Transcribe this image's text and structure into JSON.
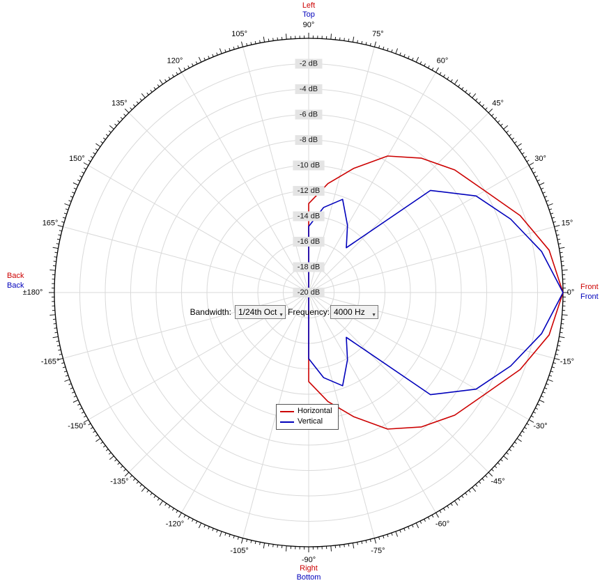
{
  "controls": {
    "bandwidth_label": "Bandwidth:",
    "bandwidth_value": "1/24th Oct",
    "frequency_label": "Frequency:",
    "frequency_value": "4000 Hz"
  },
  "legend": {
    "entries": [
      {
        "label": "Horizontal",
        "color": "#cc0000"
      },
      {
        "label": "Vertical",
        "color": "#0000bb"
      }
    ]
  },
  "direction_labels": {
    "top_primary": {
      "text": "Left",
      "color": "#cc0000"
    },
    "top_secondary": {
      "text": "Top",
      "color": "#0000bb"
    },
    "right_primary": {
      "text": "Front",
      "color": "#cc0000"
    },
    "right_secondary": {
      "text": "Front",
      "color": "#0000bb"
    },
    "left_primary": {
      "text": "Back",
      "color": "#cc0000"
    },
    "left_secondary": {
      "text": "Back",
      "color": "#0000bb"
    },
    "bottom_primary": {
      "text": "Right",
      "color": "#cc0000"
    },
    "bottom_secondary": {
      "text": "Bottom",
      "color": "#0000bb"
    }
  },
  "chart_data": {
    "type": "polar-line",
    "grid": true,
    "legend_position": "lower-left-of-center",
    "radial_axis": {
      "unit": "dB",
      "max": 0,
      "min": -20,
      "step": 2,
      "ring_labels": [
        {
          "db": -2,
          "label": "-2 dB"
        },
        {
          "db": -4,
          "label": "-4 dB"
        },
        {
          "db": -6,
          "label": "-6 dB"
        },
        {
          "db": -8,
          "label": "-8 dB"
        },
        {
          "db": -10,
          "label": "-10 dB"
        },
        {
          "db": -12,
          "label": "-12 dB"
        },
        {
          "db": -14,
          "label": "-14 dB"
        },
        {
          "db": -16,
          "label": "-16 dB"
        },
        {
          "db": -18,
          "label": "-18 dB"
        },
        {
          "db": -20,
          "label": "-20 dB"
        }
      ]
    },
    "angle_axis": {
      "unit": "degrees",
      "major_step_deg": 15,
      "mid_tick_deg": 5,
      "minor_tick_deg": 1,
      "labels": [
        {
          "angle": 90,
          "label": "90°"
        },
        {
          "angle": 75,
          "label": "75°"
        },
        {
          "angle": 60,
          "label": "60°"
        },
        {
          "angle": 45,
          "label": "45°"
        },
        {
          "angle": 30,
          "label": "30°"
        },
        {
          "angle": 15,
          "label": "15°"
        },
        {
          "angle": 0,
          "label": "0°"
        },
        {
          "angle": -15,
          "label": "-15°"
        },
        {
          "angle": -30,
          "label": "-30°"
        },
        {
          "angle": -45,
          "label": "-45°"
        },
        {
          "angle": -60,
          "label": "-60°"
        },
        {
          "angle": -75,
          "label": "-75°"
        },
        {
          "angle": -90,
          "label": "-90°"
        },
        {
          "angle": -105,
          "label": "-105°"
        },
        {
          "angle": -120,
          "label": "-120°"
        },
        {
          "angle": -135,
          "label": "-135°"
        },
        {
          "angle": -150,
          "label": "-150°"
        },
        {
          "angle": -165,
          "label": "-165°"
        },
        {
          "angle": 180,
          "label": "±180°"
        },
        {
          "angle": 165,
          "label": "165°"
        },
        {
          "angle": 150,
          "label": "150°"
        },
        {
          "angle": 135,
          "label": "135°"
        },
        {
          "angle": 120,
          "label": "120°"
        },
        {
          "angle": 105,
          "label": "105°"
        }
      ]
    },
    "series": [
      {
        "name": "Horizontal",
        "color": "#cc0000",
        "points": [
          [
            -180,
            -20
          ],
          [
            -170,
            -20
          ],
          [
            -160,
            -20
          ],
          [
            -150,
            -20
          ],
          [
            -140,
            -20
          ],
          [
            -130,
            -20
          ],
          [
            -120,
            -20
          ],
          [
            -110,
            -20
          ],
          [
            -100,
            -20
          ],
          [
            -90,
            -13.0
          ],
          [
            -80,
            -11.3
          ],
          [
            -70,
            -9.6
          ],
          [
            -60,
            -7.6
          ],
          [
            -50,
            -6.2
          ],
          [
            -40,
            -5.0
          ],
          [
            -30,
            -4.0
          ],
          [
            -20,
            -2.3
          ],
          [
            -10,
            -0.8
          ],
          [
            0,
            0
          ],
          [
            10,
            -0.8
          ],
          [
            20,
            -2.3
          ],
          [
            30,
            -4.0
          ],
          [
            40,
            -5.0
          ],
          [
            50,
            -6.2
          ],
          [
            60,
            -7.6
          ],
          [
            70,
            -9.6
          ],
          [
            80,
            -11.3
          ],
          [
            90,
            -13.0
          ],
          [
            100,
            -20
          ],
          [
            110,
            -20
          ],
          [
            120,
            -20
          ],
          [
            130,
            -20
          ],
          [
            140,
            -20
          ],
          [
            150,
            -20
          ],
          [
            160,
            -20
          ],
          [
            170,
            -20
          ],
          [
            180,
            -20
          ]
        ]
      },
      {
        "name": "Vertical",
        "color": "#0000bb",
        "points": [
          [
            -180,
            -20
          ],
          [
            -170,
            -20
          ],
          [
            -160,
            -20
          ],
          [
            -150,
            -20
          ],
          [
            -140,
            -20
          ],
          [
            -130,
            -20
          ],
          [
            -120,
            -20
          ],
          [
            -110,
            -20
          ],
          [
            -100,
            -20
          ],
          [
            -90,
            -14.8
          ],
          [
            -80,
            -13.2
          ],
          [
            -70,
            -12.2
          ],
          [
            -60,
            -13.9
          ],
          [
            -50,
            -15.4
          ],
          [
            -40,
            -7.5
          ],
          [
            -30,
            -4.8
          ],
          [
            -20,
            -3.1
          ],
          [
            -10,
            -1.4
          ],
          [
            0,
            0
          ],
          [
            10,
            -1.4
          ],
          [
            20,
            -3.1
          ],
          [
            30,
            -4.8
          ],
          [
            40,
            -7.5
          ],
          [
            50,
            -15.4
          ],
          [
            60,
            -13.9
          ],
          [
            70,
            -12.2
          ],
          [
            80,
            -13.2
          ],
          [
            90,
            -14.8
          ],
          [
            100,
            -20
          ],
          [
            110,
            -20
          ],
          [
            120,
            -20
          ],
          [
            130,
            -20
          ],
          [
            140,
            -20
          ],
          [
            150,
            -20
          ],
          [
            160,
            -20
          ],
          [
            170,
            -20
          ],
          [
            180,
            -20
          ]
        ]
      }
    ]
  }
}
